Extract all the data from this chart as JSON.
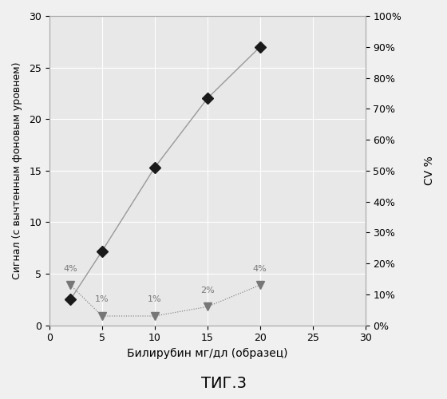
{
  "signal_x": [
    2,
    5,
    10,
    15,
    20
  ],
  "signal_y": [
    2.5,
    7.2,
    15.3,
    22.0,
    27.0
  ],
  "cv_x": [
    2,
    5,
    10,
    15,
    20
  ],
  "cv_y": [
    13,
    3,
    3,
    6,
    13
  ],
  "cv_labels": [
    "4%",
    "1%",
    "1%",
    "2%",
    "4%"
  ],
  "cv_label_offsets": [
    1.5,
    1.5,
    1.5,
    1.5,
    1.5
  ],
  "xlim": [
    0,
    30
  ],
  "ylim_left": [
    0,
    30
  ],
  "ylim_right": [
    0,
    100
  ],
  "xlabel": "Билирубин мг/дл (образец)",
  "ylabel_left": "Сигнал (с вычтенным фоновым уровнем)",
  "ylabel_right": "CV %",
  "title": "ΤИГ.3",
  "signal_color": "#1a1a1a",
  "cv_color": "#777777",
  "background_color": "#f0f0f0",
  "plot_bg_color": "#e8e8e8",
  "grid_color": "#ffffff",
  "line_color": "#999999"
}
